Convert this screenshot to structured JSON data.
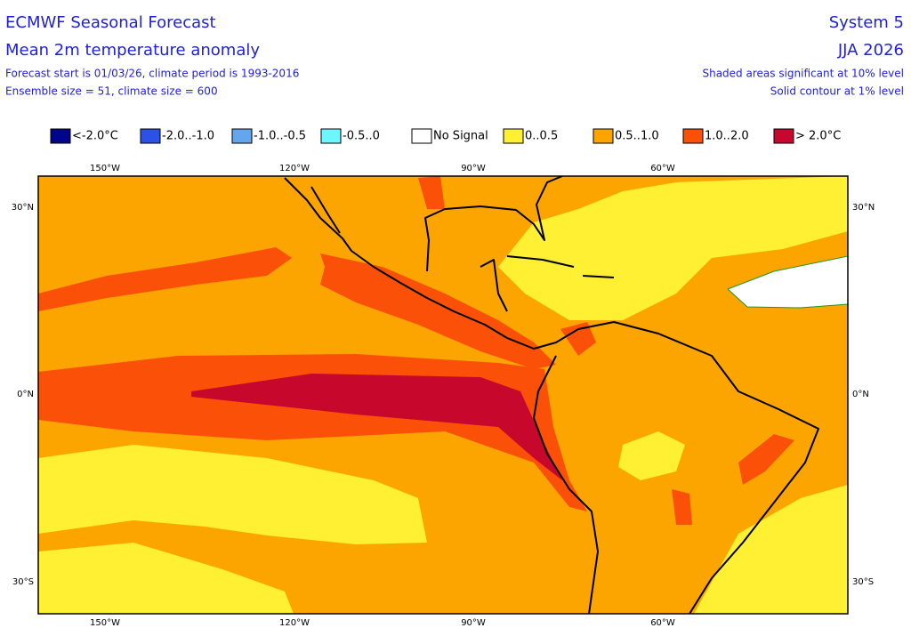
{
  "header": {
    "title": "ECMWF Seasonal Forecast",
    "subtitle": "Mean 2m temperature anomaly",
    "info": [
      "Forecast start is 01/03/26, climate period is 1993-2016",
      "Ensemble size = 51, climate size = 600"
    ],
    "system": "System 5",
    "period": "JJA 2026",
    "notes": [
      "Shaded areas significant at 10% level",
      "Solid contour at 1% level"
    ]
  },
  "legend": [
    {
      "label": "<-2.0°C",
      "color": "#00068c"
    },
    {
      "label": "-2.0..-1.0",
      "color": "#2a52e6"
    },
    {
      "label": "-1.0..-0.5",
      "color": "#64a6ee"
    },
    {
      "label": "-0.5..0",
      "color": "#6cf6ff"
    },
    {
      "label": "No Signal",
      "color": "#ffffff"
    },
    {
      "label": "0..0.5",
      "color": "#fff033"
    },
    {
      "label": "0.5..1.0",
      "color": "#fca500"
    },
    {
      "label": "1.0..2.0",
      "color": "#fa5008"
    },
    {
      "label": "> 2.0°C",
      "color": "#c8072c"
    }
  ],
  "map": {
    "longitudes": [
      "150°W",
      "120°W",
      "90°W",
      "60°W"
    ],
    "latitudes": [
      "30°N",
      "0°N",
      "30°S"
    ]
  }
}
